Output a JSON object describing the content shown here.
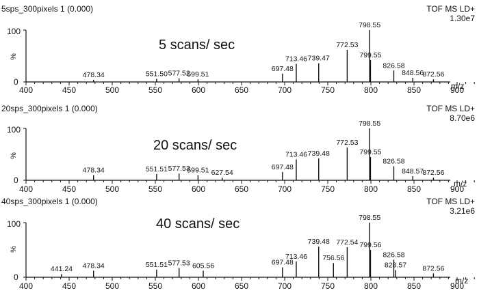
{
  "x_axis_label": "m/z",
  "chart_data": [
    {
      "type": "bar",
      "title": "5sps_300pixels 1 (0.000)",
      "mode": "TOF MS LD+",
      "intensity": "1.30e7",
      "annotation": "5 scans/ sec",
      "xlim": [
        400,
        925
      ],
      "ylim": [
        0,
        100
      ],
      "xticks": [
        400,
        450,
        500,
        550,
        600,
        650,
        700,
        750,
        800,
        850,
        900
      ],
      "yticks": [
        0,
        100
      ],
      "ylabel": "%",
      "xlabel": "m/z",
      "labeled_peaks": [
        {
          "mz": 478.34,
          "label": "478.34",
          "intensity": 4
        },
        {
          "mz": 551.5,
          "label": "551.50",
          "intensity": 6
        },
        {
          "mz": 577.52,
          "label": "577.52",
          "intensity": 7
        },
        {
          "mz": 599.51,
          "label": "599.51",
          "intensity": 5
        },
        {
          "mz": 697.48,
          "label": "697.48",
          "intensity": 16
        },
        {
          "mz": 713.46,
          "label": "713.46",
          "intensity": 35
        },
        {
          "mz": 739.47,
          "label": "739.47",
          "intensity": 36
        },
        {
          "mz": 772.53,
          "label": "772.53",
          "intensity": 62
        },
        {
          "mz": 798.55,
          "label": "798.55",
          "intensity": 100
        },
        {
          "mz": 799.55,
          "label": "799.55",
          "intensity": 42
        },
        {
          "mz": 826.58,
          "label": "826.58",
          "intensity": 22
        },
        {
          "mz": 848.56,
          "label": "848.56",
          "intensity": 8
        },
        {
          "mz": 872.56,
          "label": "872.56",
          "intensity": 5
        }
      ]
    },
    {
      "type": "bar",
      "title": "20sps_300pixels 1 (0.000)",
      "mode": "TOF MS LD+",
      "intensity": "8.70e6",
      "annotation": "20 scans/ sec",
      "xlim": [
        400,
        925
      ],
      "ylim": [
        0,
        100
      ],
      "xticks": [
        400,
        450,
        500,
        550,
        600,
        650,
        700,
        750,
        800,
        850,
        900
      ],
      "yticks": [
        0,
        100
      ],
      "ylabel": "%",
      "xlabel": "m/z",
      "labeled_peaks": [
        {
          "mz": 478.34,
          "label": "478.34",
          "intensity": 10
        },
        {
          "mz": 551.51,
          "label": "551.51",
          "intensity": 12
        },
        {
          "mz": 577.53,
          "label": "577.53",
          "intensity": 13
        },
        {
          "mz": 599.51,
          "label": "599.51",
          "intensity": 10
        },
        {
          "mz": 627.54,
          "label": "627.54",
          "intensity": 5
        },
        {
          "mz": 697.48,
          "label": "697.48",
          "intensity": 16
        },
        {
          "mz": 713.46,
          "label": "713.46",
          "intensity": 40
        },
        {
          "mz": 739.48,
          "label": "739.48",
          "intensity": 42
        },
        {
          "mz": 772.53,
          "label": "772.53",
          "intensity": 63
        },
        {
          "mz": 798.55,
          "label": "798.55",
          "intensity": 100
        },
        {
          "mz": 799.55,
          "label": "799.55",
          "intensity": 45
        },
        {
          "mz": 826.58,
          "label": "826.58",
          "intensity": 27
        },
        {
          "mz": 848.57,
          "label": "848.57",
          "intensity": 8
        },
        {
          "mz": 872.56,
          "label": "872.56",
          "intensity": 5
        }
      ]
    },
    {
      "type": "bar",
      "title": "40sps_300pixels 1 (0.000)",
      "mode": "TOF MS LD+",
      "intensity": "3.21e6",
      "annotation": "40 scans/ sec",
      "xlim": [
        400,
        925
      ],
      "ylim": [
        0,
        100
      ],
      "xticks": [
        400,
        450,
        500,
        550,
        600,
        650,
        700,
        750,
        800,
        850,
        900
      ],
      "yticks": [
        0,
        100
      ],
      "ylabel": "%",
      "xlabel": "m/z",
      "labeled_peaks": [
        {
          "mz": 441.24,
          "label": "441.24",
          "intensity": 6
        },
        {
          "mz": 478.34,
          "label": "478.34",
          "intensity": 12
        },
        {
          "mz": 551.51,
          "label": "551.51",
          "intensity": 14
        },
        {
          "mz": 577.53,
          "label": "577.53",
          "intensity": 17
        },
        {
          "mz": 605.56,
          "label": "605.56",
          "intensity": 12
        },
        {
          "mz": 697.48,
          "label": "697.48",
          "intensity": 18
        },
        {
          "mz": 713.46,
          "label": "713.46",
          "intensity": 29
        },
        {
          "mz": 739.48,
          "label": "739.48",
          "intensity": 56
        },
        {
          "mz": 756.56,
          "label": "756.56",
          "intensity": 26
        },
        {
          "mz": 772.54,
          "label": "772.54",
          "intensity": 55
        },
        {
          "mz": 798.55,
          "label": "798.55",
          "intensity": 100
        },
        {
          "mz": 799.56,
          "label": "799.56",
          "intensity": 50
        },
        {
          "mz": 826.58,
          "label": "826.58",
          "intensity": 32
        },
        {
          "mz": 828.57,
          "label": "828.57",
          "intensity": 13
        },
        {
          "mz": 872.56,
          "label": "872.56",
          "intensity": 7
        }
      ]
    }
  ]
}
